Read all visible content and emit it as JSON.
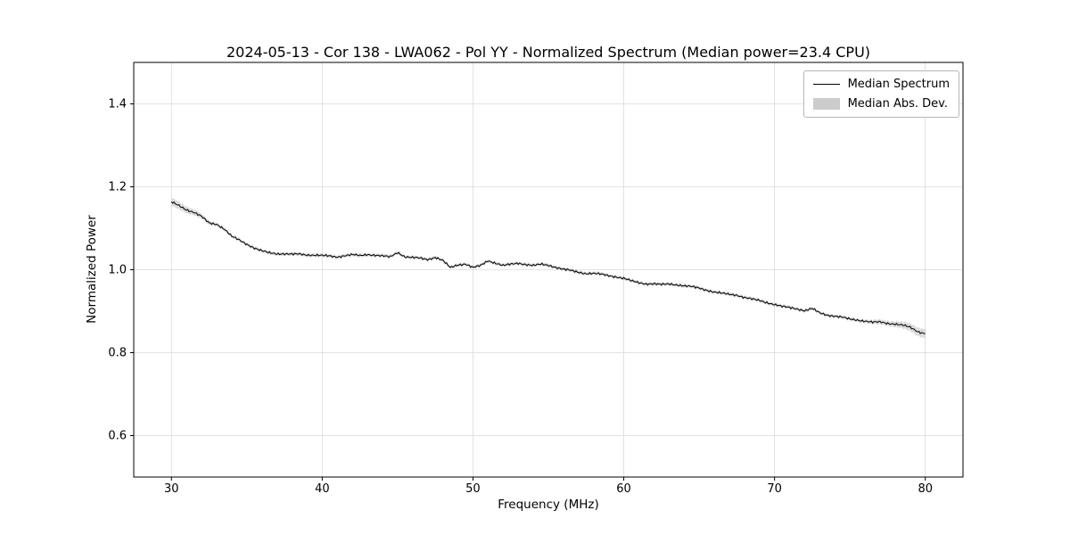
{
  "chart_data": {
    "type": "line",
    "title": "2024-05-13 - Cor 138 - LWA062 - Pol YY - Normalized Spectrum (Median power=23.4 CPU)",
    "xlabel": "Frequency (MHz)",
    "ylabel": "Normalized Power",
    "xlim": [
      27.5,
      82.5
    ],
    "ylim": [
      0.5,
      1.5
    ],
    "grid": true,
    "legend_position": "upper right",
    "x_ticks": [
      30,
      40,
      50,
      60,
      70,
      80
    ],
    "x_tick_labels": [
      "30",
      "40",
      "50",
      "60",
      "70",
      "80"
    ],
    "y_ticks": [
      0.6,
      0.8,
      1.0,
      1.2,
      1.4
    ],
    "y_tick_labels": [
      "0.6",
      "0.8",
      "1.0",
      "1.2",
      "1.4"
    ],
    "colors": {
      "line": "#000000",
      "band": "#c8c8c8",
      "grid": "#dadada"
    },
    "x": [
      30,
      30.5,
      31,
      31.5,
      32,
      32.5,
      33,
      33.5,
      34,
      34.5,
      35,
      35.5,
      36,
      36.5,
      37,
      37.5,
      38,
      38.5,
      39,
      39.5,
      40,
      40.5,
      41,
      41.5,
      42,
      42.5,
      43,
      43.5,
      44,
      44.5,
      45,
      45.5,
      46,
      46.5,
      47,
      47.5,
      48,
      48.5,
      49,
      49.5,
      50,
      50.5,
      51,
      51.5,
      52,
      52.5,
      53,
      53.5,
      54,
      54.5,
      55,
      55.5,
      56,
      56.5,
      57,
      57.5,
      58,
      58.5,
      59,
      59.5,
      60,
      60.5,
      61,
      61.5,
      62,
      62.5,
      63,
      63.5,
      64,
      64.5,
      65,
      65.5,
      66,
      66.5,
      67,
      67.5,
      68,
      68.5,
      69,
      69.5,
      70,
      70.5,
      71,
      71.5,
      72,
      72.5,
      73,
      73.5,
      74,
      74.5,
      75,
      75.5,
      76,
      76.5,
      77,
      77.5,
      78,
      78.5,
      79,
      79.5,
      80
    ],
    "series": [
      {
        "name": "Median Spectrum",
        "color": "#000000",
        "values": [
          1.163,
          1.155,
          1.145,
          1.138,
          1.128,
          1.113,
          1.11,
          1.098,
          1.08,
          1.072,
          1.062,
          1.052,
          1.045,
          1.041,
          1.039,
          1.038,
          1.037,
          1.038,
          1.036,
          1.035,
          1.034,
          1.033,
          1.031,
          1.034,
          1.036,
          1.034,
          1.037,
          1.035,
          1.033,
          1.031,
          1.042,
          1.031,
          1.029,
          1.028,
          1.025,
          1.03,
          1.022,
          1.005,
          1.012,
          1.014,
          1.005,
          1.01,
          1.022,
          1.016,
          1.01,
          1.013,
          1.016,
          1.013,
          1.01,
          1.013,
          1.011,
          1.006,
          1.001,
          0.998,
          0.994,
          0.991,
          0.991,
          0.989,
          0.986,
          0.983,
          0.979,
          0.973,
          0.969,
          0.966,
          0.966,
          0.964,
          0.966,
          0.964,
          0.961,
          0.959,
          0.956,
          0.951,
          0.946,
          0.943,
          0.941,
          0.939,
          0.933,
          0.929,
          0.926,
          0.921,
          0.916,
          0.911,
          0.909,
          0.906,
          0.901,
          0.906,
          0.896,
          0.891,
          0.888,
          0.885,
          0.881,
          0.879,
          0.876,
          0.873,
          0.874,
          0.871,
          0.869,
          0.866,
          0.861,
          0.851,
          0.846
        ]
      },
      {
        "name": "Median Abs. Dev.",
        "color": "#c8c8c8",
        "values": [
          0.01,
          0.009,
          0.008,
          0.007,
          0.006,
          0.005,
          0.004,
          0.004,
          0.004,
          0.004,
          0.004,
          0.004,
          0.004,
          0.004,
          0.004,
          0.004,
          0.004,
          0.004,
          0.004,
          0.004,
          0.004,
          0.004,
          0.004,
          0.004,
          0.004,
          0.004,
          0.004,
          0.004,
          0.004,
          0.004,
          0.004,
          0.004,
          0.004,
          0.004,
          0.004,
          0.004,
          0.004,
          0.004,
          0.004,
          0.004,
          0.004,
          0.004,
          0.004,
          0.004,
          0.004,
          0.004,
          0.004,
          0.004,
          0.004,
          0.004,
          0.004,
          0.004,
          0.004,
          0.004,
          0.004,
          0.004,
          0.004,
          0.004,
          0.004,
          0.004,
          0.004,
          0.004,
          0.004,
          0.004,
          0.004,
          0.004,
          0.004,
          0.004,
          0.004,
          0.004,
          0.004,
          0.004,
          0.004,
          0.004,
          0.004,
          0.004,
          0.004,
          0.004,
          0.004,
          0.004,
          0.004,
          0.004,
          0.004,
          0.004,
          0.004,
          0.004,
          0.004,
          0.004,
          0.004,
          0.004,
          0.004,
          0.004,
          0.004,
          0.005,
          0.006,
          0.006,
          0.007,
          0.008,
          0.009,
          0.01,
          0.011
        ]
      }
    ]
  }
}
